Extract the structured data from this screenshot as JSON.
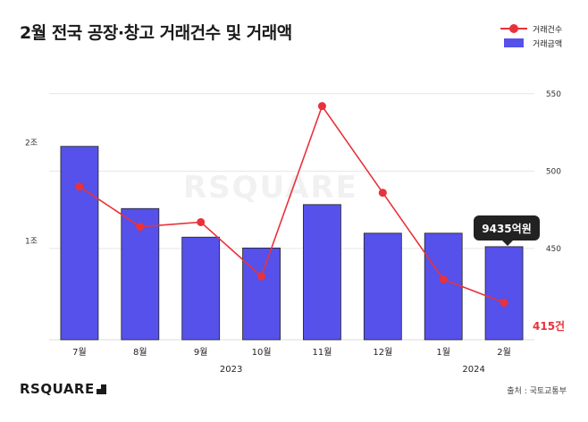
{
  "title": "2월 전국 공장·창고 거래건수 및 거래액",
  "legend": {
    "count_label": "거래건수",
    "amount_label": "거래금액"
  },
  "watermark": "RSQUARE",
  "logo_text": "RSQUARE",
  "source": "출처 : 국토교통부",
  "callout_amount": "9435억원",
  "callout_count": "415건",
  "colors": {
    "bar": "#5551ea",
    "line": "#e8323b",
    "text": "#1a1a1a",
    "grid": "#e6e6e6"
  },
  "chart_data": {
    "type": "bar+line",
    "categories": [
      "7월",
      "8월",
      "9월",
      "10월",
      "11월",
      "12월",
      "1월",
      "2월"
    ],
    "year_labels": [
      {
        "label": "2023",
        "span": [
          0,
          5
        ]
      },
      {
        "label": "2024",
        "span": [
          6,
          7
        ]
      }
    ],
    "series": [
      {
        "name": "거래금액",
        "type": "bar",
        "axis": "left",
        "unit": "억원",
        "values": [
          19600,
          13300,
          10400,
          9300,
          13700,
          10800,
          10800,
          9435
        ]
      },
      {
        "name": "거래건수",
        "type": "line",
        "axis": "right",
        "unit": "건",
        "values": [
          490,
          464,
          467,
          432,
          542,
          486,
          430,
          415
        ]
      }
    ],
    "left_axis": {
      "ticks": [
        10000,
        20000
      ],
      "tick_labels": [
        "1조",
        "2조"
      ],
      "range": [
        0,
        29000
      ]
    },
    "right_axis": {
      "ticks": [
        450,
        500,
        550
      ],
      "tick_labels": [
        "450",
        "500",
        "550"
      ],
      "range": [
        391,
        550
      ]
    }
  }
}
